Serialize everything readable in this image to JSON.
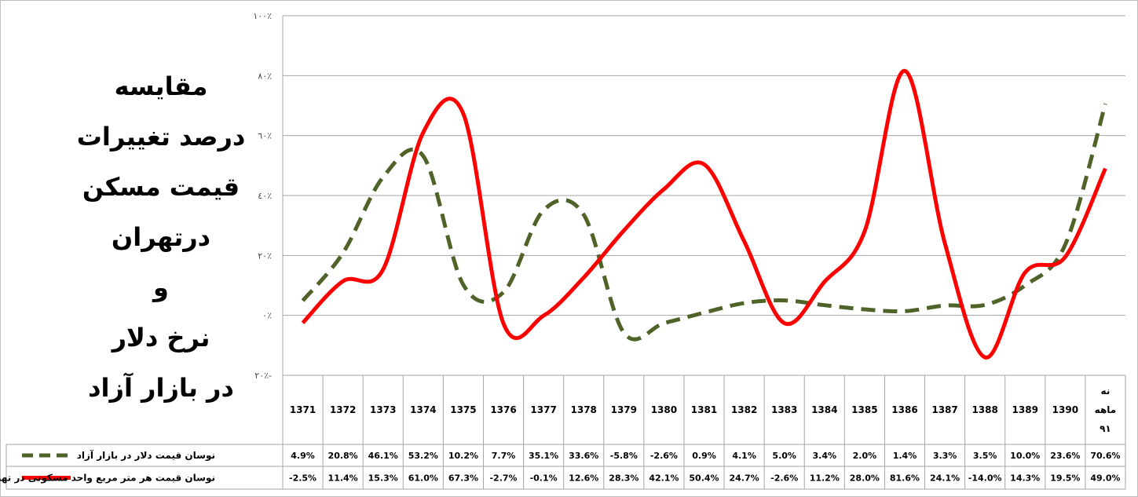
{
  "title_lines": [
    "مقایسه",
    "درصد تغییرات",
    "قیمت مسکن",
    "درتهران",
    "و",
    "نرخ دلار",
    "در بازار آزاد"
  ],
  "chart_data": {
    "type": "line",
    "ylim": [
      -20,
      100
    ],
    "yticks": [
      -20,
      0,
      20,
      40,
      60,
      80,
      100
    ],
    "ytick_labels": [
      "٢٠٪-",
      "٠٪",
      "٢٠٪",
      "٤٠٪",
      "٦٠٪",
      "٨٠٪",
      "١٠٠٪"
    ],
    "grid": true,
    "categories": [
      "1371",
      "1372",
      "1373",
      "1374",
      "1375",
      "1376",
      "1377",
      "1378",
      "1379",
      "1380",
      "1381",
      "1382",
      "1383",
      "1384",
      "1385",
      "1386",
      "1387",
      "1388",
      "1389",
      "1390",
      "نه ماهه ۹۱"
    ],
    "series": [
      {
        "name": "نوسان قیمت دلار در بازار آزاد",
        "style": "dashed",
        "color": "#4f6228",
        "values": [
          4.9,
          20.8,
          46.1,
          53.2,
          10.2,
          7.7,
          35.1,
          33.6,
          -5.8,
          -2.6,
          0.9,
          4.1,
          5.0,
          3.4,
          2.0,
          1.4,
          3.3,
          3.5,
          10.0,
          23.6,
          70.6
        ],
        "labels": [
          "4.9%",
          "20.8%",
          "46.1%",
          "53.2%",
          "10.2%",
          "7.7%",
          "35.1%",
          "33.6%",
          "-5.8%",
          "-2.6%",
          "0.9%",
          "4.1%",
          "5.0%",
          "3.4%",
          "2.0%",
          "1.4%",
          "3.3%",
          "3.5%",
          "10.0%",
          "23.6%",
          "70.6%"
        ]
      },
      {
        "name": "نوسان قیمت هر متر مربع واحد مسکونی در تهران",
        "style": "solid",
        "color": "#ff0000",
        "values": [
          -2.5,
          11.4,
          15.3,
          61.0,
          67.3,
          -2.7,
          -0.1,
          12.6,
          28.3,
          42.1,
          50.4,
          24.7,
          -2.6,
          11.2,
          28.0,
          81.6,
          24.1,
          -14.0,
          14.3,
          19.5,
          49.0
        ],
        "labels": [
          "-2.5%",
          "11.4%",
          "15.3%",
          "61.0%",
          "67.3%",
          "-2.7%",
          "-0.1%",
          "12.6%",
          "28.3%",
          "42.1%",
          "50.4%",
          "24.7%",
          "-2.6%",
          "11.2%",
          "28.0%",
          "81.6%",
          "24.1%",
          "-14.0%",
          "14.3%",
          "19.5%",
          "49.0%"
        ]
      }
    ]
  }
}
